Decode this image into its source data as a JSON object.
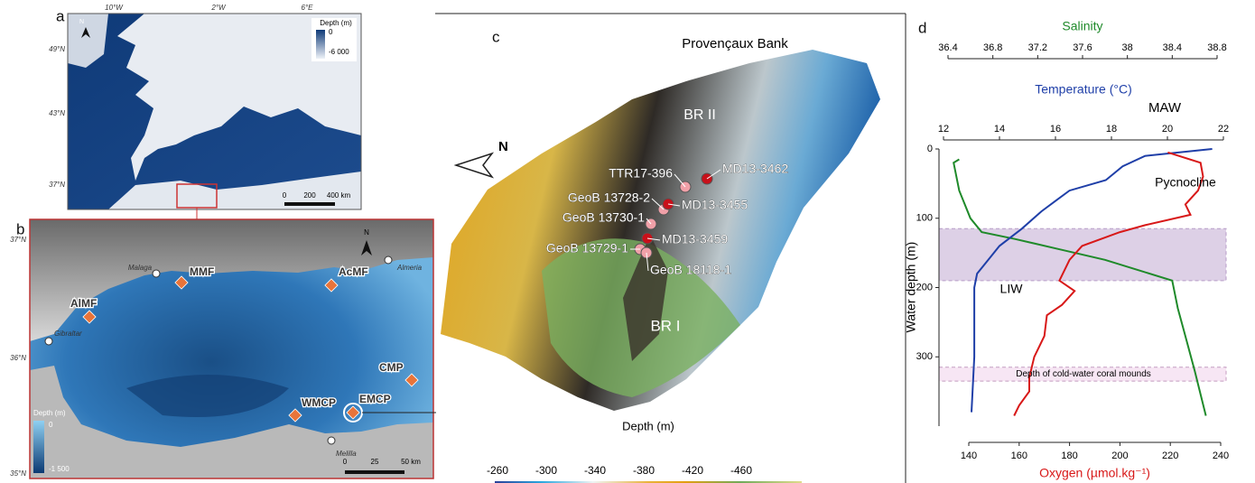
{
  "panel_a": {
    "label": "a",
    "lon_labels": [
      "10°W",
      "2°W",
      "6°E"
    ],
    "lat_labels": [
      "49°N",
      "43°N",
      "37°N"
    ],
    "north": "N",
    "legend_title": "Depth (m)",
    "legend_labels": [
      "0",
      "-6 000"
    ],
    "scale_labels": [
      "0",
      "200",
      "400 km"
    ]
  },
  "panel_b": {
    "label": "b",
    "lat_labels": [
      "37°N",
      "36°N",
      "35°N"
    ],
    "north": "N",
    "places": [
      "Malaga",
      "Almeria",
      "Gibraltar",
      "Melilla"
    ],
    "sites": [
      "MMF",
      "AcMF",
      "AlMF",
      "CMP",
      "WMCP",
      "EMCP"
    ],
    "legend_title": "Depth (m)",
    "legend_labels": [
      "0",
      "-1 500"
    ],
    "scale_labels": [
      "0",
      "25",
      "50 km"
    ]
  },
  "panel_c": {
    "label": "c",
    "title": "Provençaux Bank",
    "north": "N",
    "regions": [
      "BR II",
      "BR I"
    ],
    "cores": [
      {
        "name": "MD13-3462",
        "color": "#c8101a"
      },
      {
        "name": "TTR17-396",
        "color": "#f0a0a8"
      },
      {
        "name": "GeoB 13728-2",
        "color": "#f0a0a8"
      },
      {
        "name": "MD13-3455",
        "color": "#c8101a"
      },
      {
        "name": "GeoB 13730-1",
        "color": "#f0a0a8"
      },
      {
        "name": "MD13-3459",
        "color": "#c8101a"
      },
      {
        "name": "GeoB 13729-1",
        "color": "#f0a0a8"
      },
      {
        "name": "GeoB 18118-1",
        "color": "#f0a0a8"
      }
    ],
    "colorbar_title": "Depth (m)",
    "colorbar_ticks": [
      -260,
      -300,
      -340,
      -380,
      -420,
      -460
    ]
  },
  "panel_d": {
    "label": "d",
    "depth": {
      "title": "Water depth (m)",
      "lim": [
        0,
        400
      ],
      "ticks": [
        0,
        100,
        200,
        300
      ]
    },
    "salinity": {
      "title": "Salinity",
      "color": "#1f8a2a",
      "lim": [
        36.4,
        38.8
      ],
      "ticks": [
        36.4,
        36.8,
        37.2,
        37.6,
        38,
        38.4,
        38.8
      ],
      "depths": [
        15,
        20,
        60,
        100,
        120,
        130,
        145,
        160,
        175,
        190,
        230,
        260,
        320,
        385
      ],
      "values": [
        36.5,
        36.45,
        36.5,
        36.6,
        36.7,
        37.0,
        37.4,
        37.8,
        38.1,
        38.4,
        38.45,
        38.5,
        38.6,
        38.7
      ]
    },
    "temperature": {
      "title": "Temperature (°C)",
      "color": "#1f3fa8",
      "lim": [
        12,
        22
      ],
      "ticks": [
        12,
        14,
        16,
        18,
        20,
        22
      ],
      "depths": [
        0,
        10,
        25,
        45,
        60,
        75,
        90,
        115,
        140,
        160,
        180,
        200,
        300,
        380
      ],
      "values": [
        21.6,
        19.2,
        18.4,
        17.8,
        16.5,
        16.0,
        15.5,
        14.8,
        14.0,
        13.6,
        13.2,
        13.1,
        13.1,
        13.0
      ]
    },
    "oxygen": {
      "title": "Oxygen (µmol.kg⁻¹)",
      "color": "#d81818",
      "lim": [
        140,
        240
      ],
      "ticks": [
        140,
        160,
        180,
        200,
        220,
        240
      ],
      "depths": [
        5,
        20,
        40,
        60,
        80,
        95,
        110,
        120,
        140,
        160,
        190,
        205,
        225,
        240,
        270,
        300,
        330,
        350,
        370,
        385
      ],
      "values": [
        219,
        232,
        233,
        231,
        226,
        228,
        210,
        200,
        185,
        180,
        176,
        182,
        177,
        171,
        170,
        166,
        164,
        164,
        160,
        158
      ]
    },
    "annotations": [
      "MAW",
      "Pycnocline",
      "LIW",
      "Depth of cold-water coral mounds"
    ],
    "pycnocline": [
      115,
      190
    ],
    "coral_depth": [
      315,
      335
    ]
  }
}
